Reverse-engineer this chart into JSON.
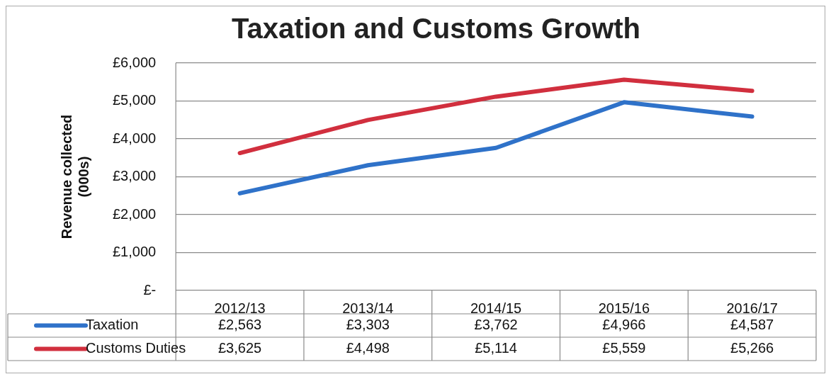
{
  "chart_data": {
    "type": "line",
    "title": "Taxation and Customs Growth",
    "ylabel": "Revenue collected\n(000s)",
    "categories": [
      "2012/13",
      "2013/14",
      "2014/15",
      "2015/16",
      "2016/17"
    ],
    "series": [
      {
        "name": "Taxation",
        "color": "#2f72c9",
        "values": [
          2563,
          3303,
          3762,
          4966,
          4587
        ],
        "value_labels": [
          "£2,563",
          "£3,303",
          "£3,762",
          "£4,966",
          "£4,587"
        ]
      },
      {
        "name": "Customs Duties",
        "color": "#d12f3e",
        "values": [
          3625,
          4498,
          5114,
          5559,
          5266
        ],
        "value_labels": [
          "£3,625",
          "£4,498",
          "£5,114",
          "£5,559",
          "£5,266"
        ]
      }
    ],
    "ylim": [
      0,
      6000
    ],
    "yticks": [
      {
        "value": 0,
        "label": "£-"
      },
      {
        "value": 1000,
        "label": "£1,000"
      },
      {
        "value": 2000,
        "label": "£2,000"
      },
      {
        "value": 3000,
        "label": "£3,000"
      },
      {
        "value": 4000,
        "label": "£4,000"
      },
      {
        "value": 5000,
        "label": "£5,000"
      },
      {
        "value": 6000,
        "label": "£6,000"
      }
    ],
    "grid": "y",
    "legend": "bottom",
    "marker": "none",
    "line_style": "solid"
  }
}
